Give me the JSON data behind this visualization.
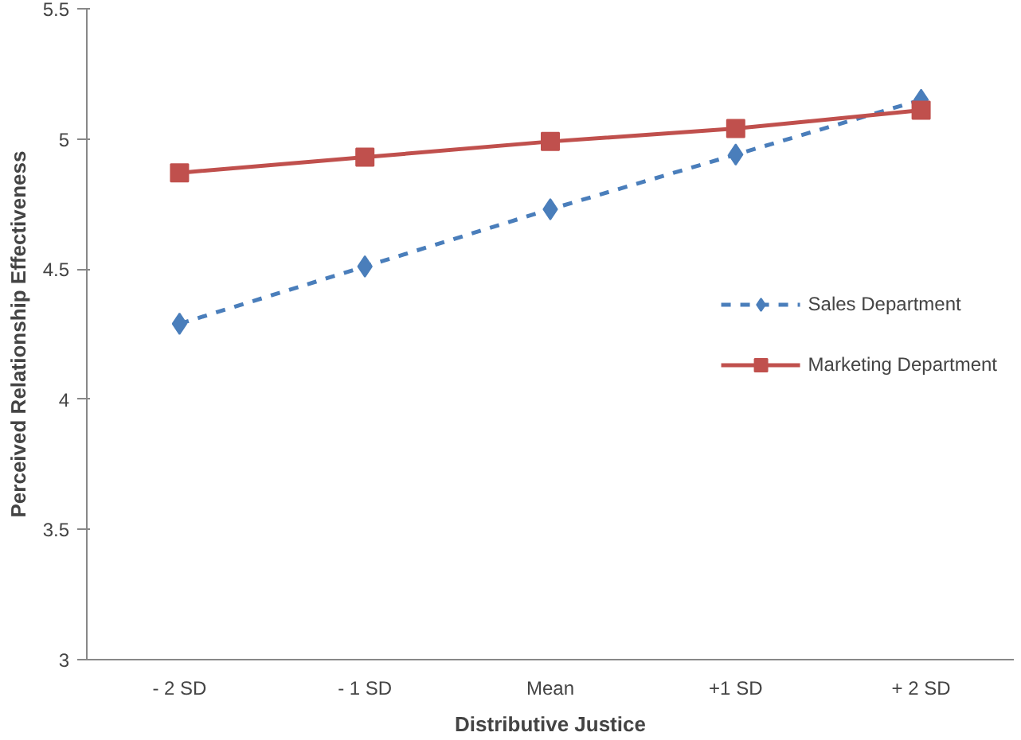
{
  "chart_data": {
    "type": "line",
    "xlabel": "Distributive Justice",
    "ylabel": "Perceived Relationship Effectiveness",
    "categories": [
      "- 2 SD",
      "- 1 SD",
      "Mean",
      "+1 SD",
      "+ 2 SD"
    ],
    "series": [
      {
        "name": "Sales Department",
        "color": "#4a7ebb",
        "marker": "diamond",
        "line_style": "dashed",
        "values": [
          4.29,
          4.51,
          4.73,
          4.94,
          5.15
        ]
      },
      {
        "name": "Marketing Department",
        "color": "#c0504d",
        "marker": "square",
        "line_style": "solid",
        "values": [
          4.87,
          4.93,
          4.99,
          5.04,
          5.11
        ]
      }
    ],
    "ylim": [
      3,
      5.5
    ],
    "yticks": [
      3,
      3.5,
      4,
      4.5,
      5,
      5.5
    ],
    "grid": false,
    "legend": "right"
  }
}
